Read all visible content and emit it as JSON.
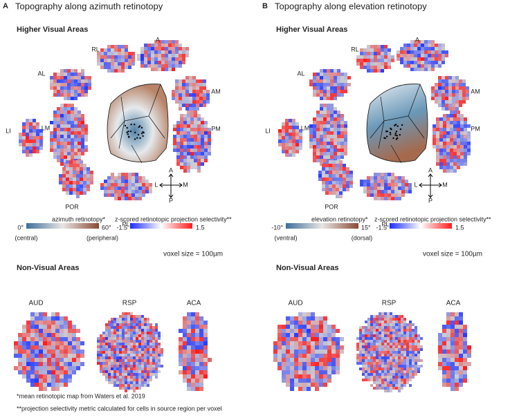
{
  "panels": [
    {
      "letter": "A",
      "title": "Topography along azimuth retinotopy",
      "higher_heading": "Higher Visual Areas",
      "areas": {
        "RL": "RL",
        "A": "A",
        "AL": "AL",
        "AM": "AM",
        "LI": "LI",
        "LM": "LM",
        "PM": "PM",
        "POR": "POR",
        "PL": "PL"
      },
      "compass": {
        "up": "A",
        "down": "P",
        "left": "L",
        "right": "M"
      },
      "retinotopy_bar": {
        "label": "azimuth retinotopy*",
        "min": "0°",
        "max": "60°",
        "min_note": "(central)",
        "max_note": "(peripheral)"
      },
      "selectivity_bar": {
        "label": "z-scored retinotopic projection selectivity**",
        "min": "-1.5",
        "max": "1.5"
      },
      "voxel_size": "voxel size = 100µm",
      "nonvisual_heading": "Non-Visual Areas",
      "nonvisual": [
        "AUD",
        "RSP",
        "ACA"
      ]
    },
    {
      "letter": "B",
      "title": "Topography along elevation retinotopy",
      "higher_heading": "Higher Visual Areas",
      "areas": {
        "RL": "RL",
        "A": "A",
        "AL": "AL",
        "AM": "AM",
        "LI": "LI",
        "LM": "LM",
        "PM": "PM",
        "POR": "POR",
        "PL": "PL"
      },
      "compass": {
        "up": "A",
        "down": "P",
        "left": "L",
        "right": "M"
      },
      "retinotopy_bar": {
        "label": "elevation retinotopy*",
        "min": "-10°",
        "max": "15°",
        "min_note": "(ventral)",
        "max_note": "(dorsal)"
      },
      "selectivity_bar": {
        "label": "z-scored retinotopic projection selectivity**",
        "min": "-1.5",
        "max": "1.5"
      },
      "voxel_size": "voxel size = 100µm",
      "nonvisual_heading": "Non-Visual Areas",
      "nonvisual": [
        "AUD",
        "RSP",
        "ACA"
      ]
    }
  ],
  "footnotes": [
    "*mean retinotopic map from Waters et al. 2019",
    "**projection selectivity metric calculated for cells in source region per voxel"
  ]
}
